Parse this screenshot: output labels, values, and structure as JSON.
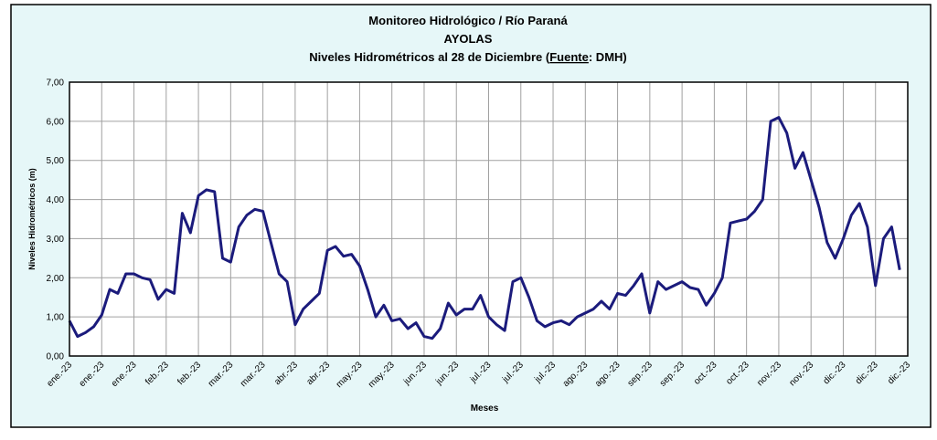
{
  "chart_data": {
    "type": "line",
    "title": "Monitoreo Hidrológico / Río Paraná",
    "subtitle": "AYOLAS",
    "caption": [
      "Niveles Hidrométricos al 28 de Diciembre (",
      "Fuente",
      ": DMH)"
    ],
    "x_label": "Meses",
    "y_label": "Niveles Hidrométricos (m)",
    "categories": [
      "ene.-23",
      null,
      null,
      null,
      "ene.-23",
      null,
      null,
      null,
      "ene.-23",
      null,
      null,
      null,
      "feb.-23",
      null,
      null,
      null,
      "feb.-23",
      null,
      null,
      null,
      "mar.-23",
      null,
      null,
      null,
      "mar.-23",
      null,
      null,
      null,
      "abr.-23",
      null,
      null,
      null,
      "abr.-23",
      null,
      null,
      null,
      "may.-23",
      null,
      null,
      null,
      "may.-23",
      null,
      null,
      null,
      "jun.-23",
      null,
      null,
      null,
      "jun.-23",
      null,
      null,
      null,
      "jul.-23",
      null,
      null,
      null,
      "jul.-23",
      null,
      null,
      null,
      "jul.-23",
      null,
      null,
      null,
      "ago.-23",
      null,
      null,
      null,
      "ago.-23",
      null,
      null,
      null,
      "sep.-23",
      null,
      null,
      null,
      "sep.-23",
      null,
      null,
      null,
      "oct.-23",
      null,
      null,
      null,
      "oct.-23",
      null,
      null,
      null,
      "nov.-23",
      null,
      null,
      null,
      "nov.-23",
      null,
      null,
      null,
      "dic.-23",
      null,
      null,
      null,
      "dic.-23",
      null,
      null,
      null,
      "dic.-23"
    ],
    "series": [
      {
        "color": "#1b1b7c",
        "values": [
          0.9,
          0.5,
          0.6,
          0.75,
          1.05,
          1.7,
          1.6,
          2.1,
          2.1,
          2.0,
          1.95,
          1.45,
          1.7,
          1.6,
          3.65,
          3.15,
          4.1,
          4.25,
          4.2,
          2.5,
          2.4,
          3.3,
          3.6,
          3.75,
          3.7,
          2.9,
          2.1,
          1.9,
          0.8,
          1.2,
          1.4,
          1.6,
          2.7,
          2.8,
          2.55,
          2.6,
          2.3,
          1.7,
          1.0,
          1.3,
          0.9,
          0.95,
          0.7,
          0.85,
          0.5,
          0.45,
          0.7,
          1.35,
          1.05,
          1.2,
          1.2,
          1.55,
          1.0,
          0.8,
          0.65,
          1.9,
          2.0,
          1.5,
          0.9,
          0.75,
          0.85,
          0.9,
          0.8,
          1.0,
          1.1,
          1.2,
          1.4,
          1.2,
          1.6,
          1.55,
          1.8,
          2.1,
          1.1,
          1.9,
          1.7,
          1.8,
          1.9,
          1.75,
          1.7,
          1.3,
          1.6,
          2.0,
          3.4,
          3.45,
          3.5,
          3.7,
          4.0,
          6.0,
          6.1,
          5.7,
          4.8,
          5.2,
          4.5,
          3.8,
          2.9,
          2.5,
          3.0,
          3.6,
          3.9,
          3.3,
          1.8,
          3.0,
          3.3,
          2.2,
          null
        ]
      }
    ],
    "ylim": [
      0,
      7
    ],
    "yticks": [
      {
        "value": 0,
        "label": "0,00"
      },
      {
        "value": 1,
        "label": "1,00"
      },
      {
        "value": 2,
        "label": "2,00"
      },
      {
        "value": 3,
        "label": "3,00"
      },
      {
        "value": 4,
        "label": "4,00"
      },
      {
        "value": 5,
        "label": "5,00"
      },
      {
        "value": 6,
        "label": "6,00"
      },
      {
        "value": 7,
        "label": "7,00"
      }
    ],
    "grid": true
  }
}
